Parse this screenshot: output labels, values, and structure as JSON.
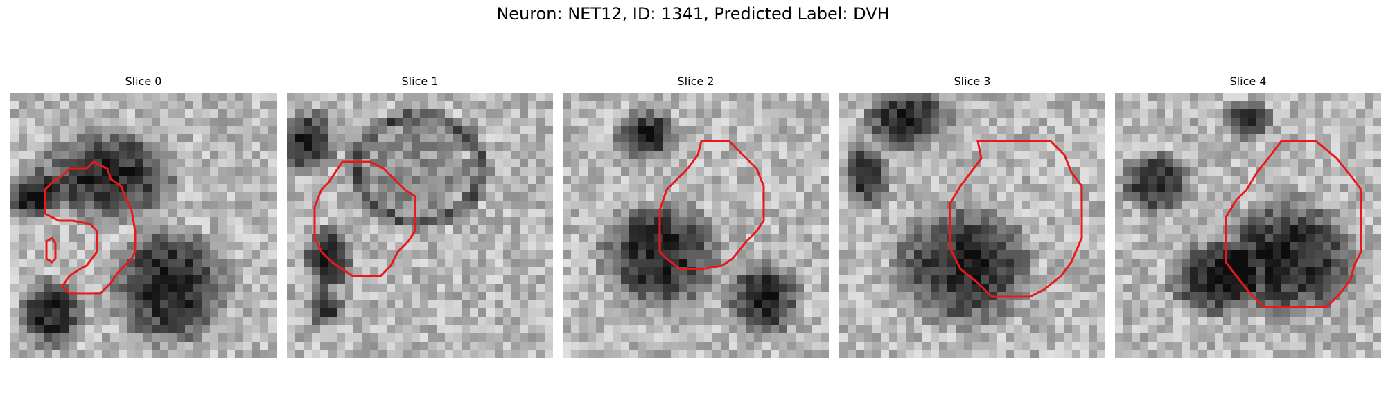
{
  "figure": {
    "title": "Neuron: NET12, ID: 1341, Predicted Label: DVH"
  },
  "panels": [
    {
      "title": "Slice 0",
      "contour_color": "#e8191b"
    },
    {
      "title": "Slice 1",
      "contour_color": "#e8191b"
    },
    {
      "title": "Slice 2",
      "contour_color": "#e8191b"
    },
    {
      "title": "Slice 3",
      "contour_color": "#e8191b"
    },
    {
      "title": "Slice 4",
      "contour_color": "#e8191b"
    }
  ]
}
